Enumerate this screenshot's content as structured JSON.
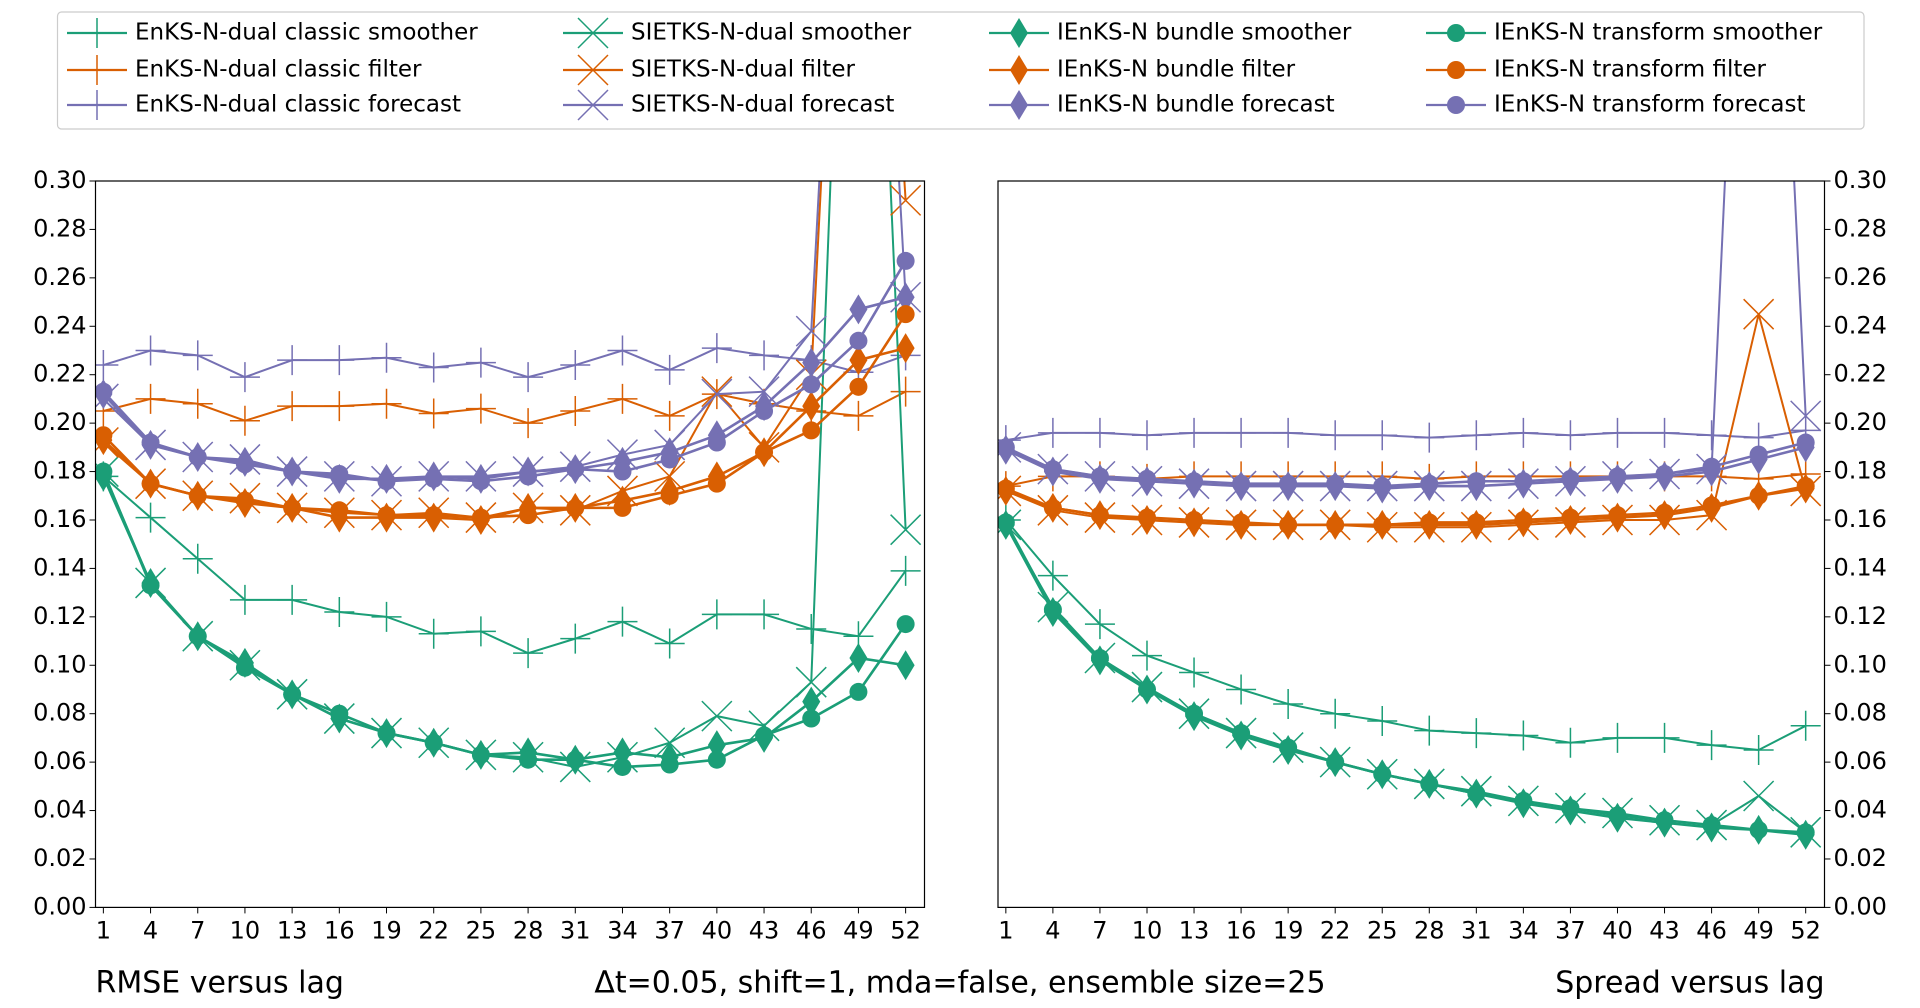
{
  "caption": "Δt=0.05, shift=1, mda=false, ensemble size=25",
  "chart_data": [
    {
      "type": "line",
      "title": "RMSE versus lag",
      "y_axis_side": "left",
      "x": [
        1,
        4,
        7,
        10,
        13,
        16,
        19,
        22,
        25,
        28,
        31,
        34,
        37,
        40,
        43,
        46,
        49,
        52
      ],
      "xlim": [
        0.5,
        53.2
      ],
      "xticks": [
        1,
        4,
        7,
        10,
        13,
        16,
        19,
        22,
        25,
        28,
        31,
        34,
        37,
        40,
        43,
        46,
        49,
        52
      ],
      "ylim": [
        0,
        0.3
      ],
      "yticks": [
        {
          "value": 0,
          "label": "0.00"
        },
        {
          "value": 0.02,
          "label": "0.02"
        },
        {
          "value": 0.04,
          "label": "0.04"
        },
        {
          "value": 0.06,
          "label": "0.06"
        },
        {
          "value": 0.08,
          "label": "0.08"
        },
        {
          "value": 0.1,
          "label": "0.10"
        },
        {
          "value": 0.12,
          "label": "0.12"
        },
        {
          "value": 0.14,
          "label": "0.14"
        },
        {
          "value": 0.16,
          "label": "0.16"
        },
        {
          "value": 0.18,
          "label": "0.18"
        },
        {
          "value": 0.2,
          "label": "0.20"
        },
        {
          "value": 0.22,
          "label": "0.22"
        },
        {
          "value": 0.24,
          "label": "0.24"
        },
        {
          "value": 0.26,
          "label": "0.26"
        },
        {
          "value": 0.28,
          "label": "0.28"
        },
        {
          "value": 0.3,
          "label": "0.30"
        }
      ],
      "series": [
        {
          "name": "EnKS-N-dual classic smoother",
          "color": "#1b9e77",
          "marker": "plus",
          "values": [
            0.178,
            0.161,
            0.144,
            0.127,
            0.127,
            0.122,
            0.12,
            0.113,
            0.114,
            0.105,
            0.111,
            0.118,
            0.109,
            0.121,
            0.121,
            0.115,
            0.112,
            0.139
          ]
        },
        {
          "name": "EnKS-N-dual classic filter",
          "color": "#d95f02",
          "marker": "plus",
          "values": [
            0.205,
            0.21,
            0.208,
            0.201,
            0.207,
            0.207,
            0.208,
            0.204,
            0.206,
            0.2,
            0.205,
            0.21,
            0.203,
            0.212,
            0.208,
            0.205,
            0.203,
            0.213
          ]
        },
        {
          "name": "EnKS-N-dual classic forecast",
          "color": "#7570b3",
          "marker": "plus",
          "values": [
            0.224,
            0.23,
            0.228,
            0.219,
            0.226,
            0.226,
            0.227,
            0.223,
            0.225,
            0.219,
            0.224,
            0.23,
            0.222,
            0.231,
            0.228,
            0.226,
            0.221,
            0.228
          ]
        },
        {
          "name": "SIETKS-N-dual smoother",
          "color": "#1b9e77",
          "marker": "x",
          "values": [
            0.18,
            0.134,
            0.112,
            0.1,
            0.088,
            0.078,
            0.072,
            0.068,
            0.063,
            0.062,
            0.058,
            0.062,
            0.068,
            0.079,
            0.075,
            0.093,
            0.6,
            0.156
          ]
        },
        {
          "name": "SIETKS-N-dual filter",
          "color": "#d95f02",
          "marker": "x",
          "values": [
            0.192,
            0.175,
            0.17,
            0.169,
            0.165,
            0.163,
            0.162,
            0.163,
            0.161,
            0.165,
            0.164,
            0.172,
            0.178,
            0.213,
            0.19,
            0.22,
            0.6,
            0.292
          ]
        },
        {
          "name": "SIETKS-N-dual forecast",
          "color": "#7570b3",
          "marker": "x",
          "values": [
            0.21,
            0.191,
            0.186,
            0.185,
            0.18,
            0.178,
            0.176,
            0.178,
            0.178,
            0.18,
            0.182,
            0.187,
            0.191,
            0.212,
            0.213,
            0.238,
            0.6,
            0.252
          ]
        },
        {
          "name": "IEnKS-N bundle smoother",
          "color": "#1b9e77",
          "marker": "diamond",
          "values": [
            0.178,
            0.134,
            0.112,
            0.101,
            0.088,
            0.078,
            0.072,
            0.068,
            0.063,
            0.064,
            0.061,
            0.064,
            0.062,
            0.067,
            0.07,
            0.085,
            0.103,
            0.1
          ]
        },
        {
          "name": "IEnKS-N bundle filter",
          "color": "#d95f02",
          "marker": "diamond",
          "values": [
            0.193,
            0.175,
            0.17,
            0.167,
            0.165,
            0.161,
            0.161,
            0.161,
            0.16,
            0.165,
            0.165,
            0.168,
            0.172,
            0.178,
            0.188,
            0.207,
            0.226,
            0.231
          ]
        },
        {
          "name": "IEnKS-N bundle forecast",
          "color": "#7570b3",
          "marker": "diamond",
          "values": [
            0.212,
            0.191,
            0.186,
            0.184,
            0.18,
            0.177,
            0.177,
            0.178,
            0.177,
            0.18,
            0.181,
            0.184,
            0.188,
            0.195,
            0.207,
            0.225,
            0.247,
            0.252
          ]
        },
        {
          "name": "IEnKS-N transform smoother",
          "color": "#1b9e77",
          "marker": "circle",
          "values": [
            0.18,
            0.133,
            0.112,
            0.099,
            0.088,
            0.08,
            0.072,
            0.068,
            0.063,
            0.061,
            0.061,
            0.058,
            0.059,
            0.061,
            0.071,
            0.078,
            0.089,
            0.117
          ]
        },
        {
          "name": "IEnKS-N transform filter",
          "color": "#d95f02",
          "marker": "circle",
          "values": [
            0.195,
            0.175,
            0.17,
            0.168,
            0.165,
            0.164,
            0.162,
            0.162,
            0.161,
            0.162,
            0.165,
            0.165,
            0.17,
            0.175,
            0.188,
            0.197,
            0.215,
            0.245
          ]
        },
        {
          "name": "IEnKS-N transform forecast",
          "color": "#7570b3",
          "marker": "circle",
          "values": [
            0.213,
            0.192,
            0.186,
            0.183,
            0.18,
            0.179,
            0.176,
            0.177,
            0.176,
            0.178,
            0.181,
            0.18,
            0.185,
            0.192,
            0.205,
            0.216,
            0.234,
            0.267
          ]
        }
      ]
    },
    {
      "type": "line",
      "title": "Spread versus lag",
      "y_axis_side": "right",
      "x": [
        1,
        4,
        7,
        10,
        13,
        16,
        19,
        22,
        25,
        28,
        31,
        34,
        37,
        40,
        43,
        46,
        49,
        52
      ],
      "xlim": [
        0.5,
        53.2
      ],
      "xticks": [
        1,
        4,
        7,
        10,
        13,
        16,
        19,
        22,
        25,
        28,
        31,
        34,
        37,
        40,
        43,
        46,
        49,
        52
      ],
      "ylim": [
        0,
        0.3
      ],
      "yticks": [
        {
          "value": 0,
          "label": "0.00"
        },
        {
          "value": 0.02,
          "label": "0.02"
        },
        {
          "value": 0.04,
          "label": "0.04"
        },
        {
          "value": 0.06,
          "label": "0.06"
        },
        {
          "value": 0.08,
          "label": "0.08"
        },
        {
          "value": 0.1,
          "label": "0.10"
        },
        {
          "value": 0.12,
          "label": "0.12"
        },
        {
          "value": 0.14,
          "label": "0.14"
        },
        {
          "value": 0.16,
          "label": "0.16"
        },
        {
          "value": 0.18,
          "label": "0.18"
        },
        {
          "value": 0.2,
          "label": "0.20"
        },
        {
          "value": 0.22,
          "label": "0.22"
        },
        {
          "value": 0.24,
          "label": "0.24"
        },
        {
          "value": 0.26,
          "label": "0.26"
        },
        {
          "value": 0.28,
          "label": "0.28"
        },
        {
          "value": 0.3,
          "label": "0.30"
        }
      ],
      "series": [
        {
          "color": "#1b9e77",
          "marker": "plus",
          "values": [
            0.16,
            0.137,
            0.117,
            0.104,
            0.097,
            0.09,
            0.084,
            0.08,
            0.077,
            0.073,
            0.072,
            0.071,
            0.068,
            0.07,
            0.07,
            0.067,
            0.065,
            0.075
          ]
        },
        {
          "color": "#d95f02",
          "marker": "plus",
          "values": [
            0.174,
            0.178,
            0.178,
            0.177,
            0.178,
            0.178,
            0.178,
            0.178,
            0.178,
            0.177,
            0.178,
            0.178,
            0.178,
            0.178,
            0.178,
            0.178,
            0.177,
            0.179
          ]
        },
        {
          "color": "#7570b3",
          "marker": "plus",
          "values": [
            0.193,
            0.196,
            0.196,
            0.195,
            0.196,
            0.196,
            0.196,
            0.195,
            0.195,
            0.194,
            0.195,
            0.196,
            0.195,
            0.196,
            0.196,
            0.195,
            0.194,
            0.197
          ]
        },
        {
          "color": "#1b9e77",
          "marker": "x",
          "values": [
            0.158,
            0.124,
            0.103,
            0.091,
            0.08,
            0.072,
            0.066,
            0.06,
            0.055,
            0.051,
            0.048,
            0.044,
            0.041,
            0.039,
            0.036,
            0.034,
            0.046,
            0.031
          ]
        },
        {
          "color": "#d95f02",
          "marker": "x",
          "values": [
            0.172,
            0.164,
            0.161,
            0.16,
            0.159,
            0.158,
            0.158,
            0.158,
            0.157,
            0.157,
            0.157,
            0.158,
            0.159,
            0.16,
            0.16,
            0.162,
            0.245,
            0.172
          ]
        },
        {
          "color": "#7570b3",
          "marker": "x",
          "values": [
            0.19,
            0.181,
            0.178,
            0.176,
            0.175,
            0.174,
            0.174,
            0.174,
            0.174,
            0.174,
            0.174,
            0.175,
            0.176,
            0.178,
            0.179,
            0.181,
            0.6,
            0.203
          ]
        },
        {
          "color": "#1b9e77",
          "marker": "diamond",
          "values": [
            0.158,
            0.122,
            0.102,
            0.09,
            0.079,
            0.071,
            0.065,
            0.06,
            0.055,
            0.051,
            0.047,
            0.043,
            0.04,
            0.037,
            0.035,
            0.033,
            0.032,
            0.03
          ]
        },
        {
          "color": "#d95f02",
          "marker": "diamond",
          "values": [
            0.172,
            0.165,
            0.162,
            0.16,
            0.159,
            0.158,
            0.158,
            0.158,
            0.158,
            0.158,
            0.158,
            0.159,
            0.16,
            0.161,
            0.162,
            0.165,
            0.17,
            0.173
          ]
        },
        {
          "color": "#7570b3",
          "marker": "diamond",
          "values": [
            0.189,
            0.18,
            0.177,
            0.176,
            0.175,
            0.174,
            0.174,
            0.174,
            0.173,
            0.174,
            0.174,
            0.175,
            0.176,
            0.177,
            0.178,
            0.18,
            0.185,
            0.19
          ]
        },
        {
          "color": "#1b9e77",
          "marker": "circle",
          "values": [
            0.159,
            0.123,
            0.103,
            0.09,
            0.08,
            0.072,
            0.066,
            0.06,
            0.055,
            0.051,
            0.047,
            0.044,
            0.041,
            0.038,
            0.036,
            0.034,
            0.032,
            0.031
          ]
        },
        {
          "color": "#d95f02",
          "marker": "circle",
          "values": [
            0.173,
            0.165,
            0.162,
            0.161,
            0.16,
            0.159,
            0.158,
            0.158,
            0.158,
            0.159,
            0.159,
            0.16,
            0.161,
            0.162,
            0.163,
            0.166,
            0.17,
            0.174
          ]
        },
        {
          "color": "#7570b3",
          "marker": "circle",
          "values": [
            0.19,
            0.181,
            0.178,
            0.177,
            0.176,
            0.175,
            0.175,
            0.175,
            0.174,
            0.175,
            0.176,
            0.176,
            0.177,
            0.178,
            0.179,
            0.182,
            0.187,
            0.192
          ]
        }
      ]
    }
  ]
}
